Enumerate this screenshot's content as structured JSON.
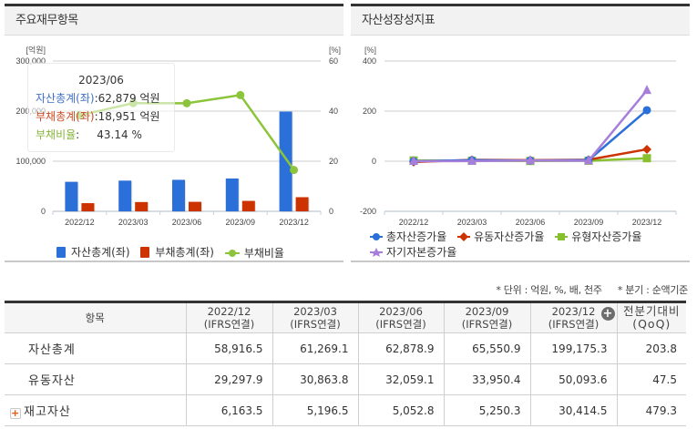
{
  "left_panel": {
    "title": "주요재무항목",
    "left_axis_unit": "[억원]",
    "right_axis_unit": "[%]",
    "tooltip": {
      "period": "2023/06",
      "assets_label": "자산총계(좌)",
      "assets_value": ":62,879 억원",
      "liabilities_label": "부채총계(좌)",
      "liabilities_value": ":18,951 억원",
      "ratio_label": "부채비율",
      "ratio_value": ":     43.14 %"
    },
    "legend": {
      "assets": "자산총계(좌)",
      "liabilities": "부채총계(좌)",
      "ratio": "부채비율"
    },
    "colors": {
      "assets": "#2b6fd8",
      "liabilities": "#cc3300",
      "ratio": "#8cc43c"
    }
  },
  "right_panel": {
    "title": "자산성장성지표",
    "axis_unit": "[%]",
    "legend": {
      "total_assets": "총자산증가율",
      "current_assets": "유동자산증가율",
      "tangible_assets": "유형자산증가율",
      "equity": "자기자본증가율"
    },
    "colors": {
      "total_assets": "#2b6fd8",
      "current_assets": "#cc3300",
      "tangible_assets": "#88c030",
      "equity": "#a77fdb"
    }
  },
  "chart_data": [
    {
      "type": "bar",
      "title": "주요재무항목",
      "categories": [
        "2022/12",
        "2023/03",
        "2023/06",
        "2023/09",
        "2023/12"
      ],
      "series": [
        {
          "name": "자산총계(좌)",
          "type": "bar",
          "axis": "left",
          "values": [
            58916.5,
            61269.1,
            62878.9,
            65550.9,
            199175.3
          ]
        },
        {
          "name": "부채총계(좌)",
          "type": "bar",
          "axis": "left",
          "values": [
            16300,
            18500,
            18951,
            20800,
            28200
          ]
        },
        {
          "name": "부채비율",
          "type": "line",
          "axis": "right",
          "values": [
            38.3,
            43.2,
            43.14,
            46.4,
            16.5
          ]
        }
      ],
      "ylabel_left": "[억원]",
      "ylim_left": [
        0,
        300000
      ],
      "yticks_left": [
        "0",
        "100,000",
        "200,000",
        "300,000"
      ],
      "ylabel_right": "[%]",
      "ylim_right": [
        0,
        60
      ],
      "yticks_right": [
        "0",
        "20",
        "40",
        "60"
      ],
      "grid": true,
      "legend_position": "bottom"
    },
    {
      "type": "line",
      "title": "자산성장성지표",
      "categories": [
        "2022/12",
        "2023/03",
        "2023/06",
        "2023/09",
        "2023/12"
      ],
      "series": [
        {
          "name": "총자산증가율",
          "marker": "circle",
          "values": [
            0,
            4.0,
            2.6,
            4.3,
            203.8
          ]
        },
        {
          "name": "유동자산증가율",
          "marker": "diamond",
          "values": [
            -3,
            5.3,
            3.9,
            5.9,
            47.5
          ]
        },
        {
          "name": "유형자산증가율",
          "marker": "square",
          "values": [
            3,
            2,
            1,
            2,
            12
          ]
        },
        {
          "name": "자기자본증가율",
          "marker": "triangle",
          "values": [
            0,
            0.4,
            2.7,
            1.9,
            283
          ]
        }
      ],
      "ylabel": "[%]",
      "ylim": [
        -200,
        400
      ],
      "yticks": [
        "-200",
        "0",
        "200",
        "400"
      ],
      "grid": true,
      "legend_position": "bottom"
    }
  ],
  "notes": {
    "unit": "* 단위 : 억원, %, 배, 천주",
    "quarter": "* 분기 : 순액기준"
  },
  "table": {
    "headers": [
      {
        "line1": "항목",
        "line2": ""
      },
      {
        "line1": "2022/12",
        "line2": "(IFRS연결)"
      },
      {
        "line1": "2023/03",
        "line2": "(IFRS연결)"
      },
      {
        "line1": "2023/06",
        "line2": "(IFRS연결)"
      },
      {
        "line1": "2023/09",
        "line2": "(IFRS연결)"
      },
      {
        "line1": "2023/12",
        "line2": "(IFRS연결)"
      },
      {
        "line1": "전분기대비",
        "line2": "(QoQ)"
      }
    ],
    "expand_header_icon": "+",
    "rows": [
      {
        "label": "자산총계",
        "values": [
          "58,916.5",
          "61,269.1",
          "62,878.9",
          "65,550.9",
          "199,175.3",
          "203.8"
        ]
      },
      {
        "label": "유동자산",
        "values": [
          "29,297.9",
          "30,863.8",
          "32,059.1",
          "33,950.4",
          "50,093.6",
          "47.5"
        ]
      },
      {
        "label": "재고자산",
        "expandable": true,
        "expand_icon": "+",
        "values": [
          "6,163.5",
          "5,196.5",
          "5,052.8",
          "5,250.3",
          "30,414.5",
          "479.3"
        ]
      }
    ]
  }
}
